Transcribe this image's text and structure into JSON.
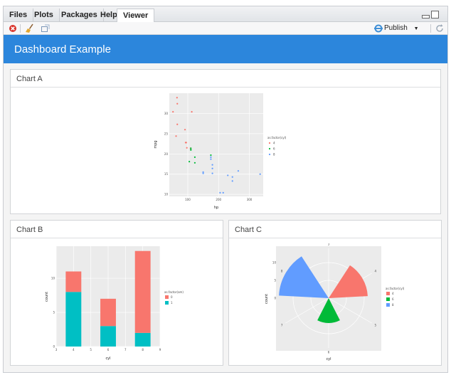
{
  "tabs": [
    {
      "label": "Files",
      "active": false
    },
    {
      "label": "Plots",
      "active": false
    },
    {
      "label": "Packages",
      "active": false
    },
    {
      "label": "Help",
      "active": false
    },
    {
      "label": "Viewer",
      "active": true
    }
  ],
  "toolbar": {
    "icons": [
      "stop-icon",
      "broom-icon",
      "popout-icon"
    ],
    "publish_label": "Publish",
    "publish_icon": "publish-icon"
  },
  "dashboard": {
    "title": "Dashboard Example",
    "header_color": "#2c86dc"
  },
  "cards": {
    "a": {
      "title": "Chart A"
    },
    "b": {
      "title": "Chart B"
    },
    "c": {
      "title": "Chart C"
    }
  },
  "chart_data": [
    {
      "id": "chart-a",
      "type": "scatter",
      "xlabel": "hp",
      "ylabel": "mpg",
      "xlim": [
        40,
        345
      ],
      "ylim": [
        9.5,
        35
      ],
      "xticks": [
        100,
        200,
        300
      ],
      "yticks": [
        10,
        15,
        20,
        25,
        30
      ],
      "grid": true,
      "legend_title": "as.factor(cyl)",
      "legend_position": "right",
      "series": [
        {
          "name": "4",
          "color": "#f8766d",
          "points": [
            [
              93,
              22.8
            ],
            [
              62,
              24.4
            ],
            [
              95,
              22.8
            ],
            [
              66,
              32.4
            ],
            [
              52,
              30.4
            ],
            [
              65,
              33.9
            ],
            [
              97,
              21.5
            ],
            [
              66,
              27.3
            ],
            [
              91,
              26.0
            ],
            [
              113,
              30.4
            ],
            [
              109,
              21.4
            ]
          ]
        },
        {
          "name": "6",
          "color": "#00ba38",
          "points": [
            [
              110,
              21.0
            ],
            [
              110,
              21.0
            ],
            [
              110,
              21.4
            ],
            [
              105,
              18.1
            ],
            [
              123,
              19.2
            ],
            [
              123,
              17.8
            ],
            [
              175,
              19.7
            ]
          ]
        },
        {
          "name": "8",
          "color": "#619cff",
          "points": [
            [
              175,
              18.7
            ],
            [
              245,
              14.3
            ],
            [
              180,
              16.4
            ],
            [
              180,
              17.3
            ],
            [
              180,
              15.2
            ],
            [
              205,
              10.4
            ],
            [
              215,
              10.4
            ],
            [
              230,
              14.7
            ],
            [
              150,
              15.5
            ],
            [
              150,
              15.2
            ],
            [
              245,
              13.3
            ],
            [
              175,
              19.2
            ],
            [
              264,
              15.8
            ],
            [
              335,
              15.0
            ]
          ]
        }
      ]
    },
    {
      "id": "chart-b",
      "type": "bar",
      "stacked": true,
      "xlabel": "cyl",
      "ylabel": "count",
      "xlim": [
        3,
        9
      ],
      "ylim": [
        0,
        14.7
      ],
      "xticks": [
        3,
        4,
        5,
        6,
        7,
        8,
        9
      ],
      "yticks": [
        0,
        5,
        10
      ],
      "categories": [
        4,
        6,
        8
      ],
      "legend_title": "as.factor(am)",
      "legend_position": "right",
      "series": [
        {
          "name": "0",
          "color": "#f8766d",
          "values": [
            3,
            4,
            12
          ]
        },
        {
          "name": "1",
          "color": "#00bfc4",
          "values": [
            8,
            3,
            2
          ]
        }
      ]
    },
    {
      "id": "chart-c",
      "type": "pie",
      "subtype": "coxcomb",
      "xlabel": "cyl",
      "ylabel": "count",
      "theta_ticks": [
        3,
        4,
        5,
        6,
        7,
        8,
        9
      ],
      "r_ticks": [
        0,
        5,
        10
      ],
      "rmax": 14,
      "legend_title": "as.factor(cyl)",
      "legend_position": "right",
      "series": [
        {
          "name": "4",
          "color": "#f8766d",
          "x": 4,
          "count": 11
        },
        {
          "name": "6",
          "color": "#00ba38",
          "x": 6,
          "count": 7
        },
        {
          "name": "8",
          "color": "#619cff",
          "x": 8,
          "count": 14
        }
      ]
    }
  ]
}
